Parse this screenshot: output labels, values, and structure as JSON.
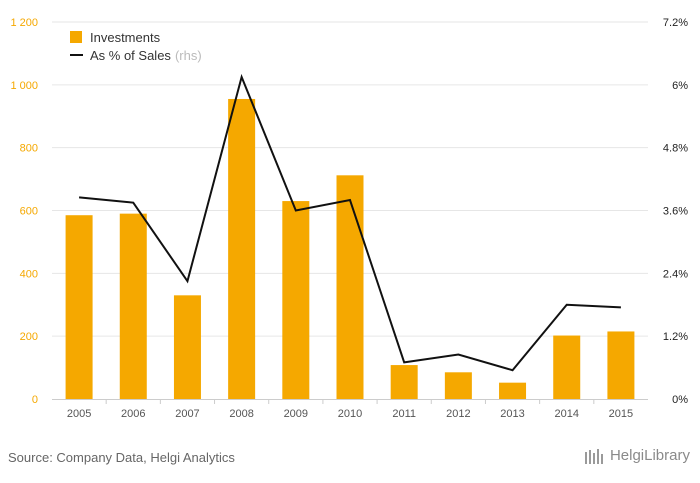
{
  "chart_data": {
    "type": "bar",
    "categories": [
      "2005",
      "2006",
      "2007",
      "2008",
      "2009",
      "2010",
      "2011",
      "2012",
      "2013",
      "2014",
      "2015"
    ],
    "series": [
      {
        "name": "Investments",
        "type": "bar",
        "axis": "left",
        "values": [
          585,
          590,
          330,
          955,
          630,
          712,
          108,
          85,
          52,
          202,
          215
        ]
      },
      {
        "name": "As % of Sales",
        "type": "line",
        "axis": "right",
        "values": [
          3.85,
          3.75,
          2.25,
          6.15,
          3.6,
          3.8,
          0.7,
          0.85,
          0.55,
          1.8,
          1.75
        ]
      }
    ],
    "legend": {
      "investments": "Investments",
      "pct_sales": "As % of Sales",
      "pct_sales_note": "(rhs)",
      "position": "top-left"
    },
    "left_axis": {
      "ylim": [
        0,
        1200
      ],
      "ticks": [
        0,
        200,
        400,
        600,
        800,
        1000,
        1200
      ],
      "tick_labels": [
        "0",
        "200",
        "400",
        "600",
        "800",
        "1 000",
        "1 200"
      ]
    },
    "right_axis": {
      "ylim": [
        0,
        7.2
      ],
      "ticks": [
        0,
        1.2,
        2.4,
        3.6,
        4.8,
        6,
        7.2
      ],
      "tick_labels": [
        "0%",
        "1.2%",
        "2.4%",
        "3.6%",
        "4.8%",
        "6%",
        "7.2%"
      ]
    },
    "grid": true
  },
  "colors": {
    "bar": "#f5a800",
    "line": "#111111",
    "left_tick": "#f5a800",
    "right_tick": "#222222",
    "grid": "#e6e6e6"
  },
  "footer": {
    "source": "Source: Company Data, Helgi Analytics",
    "brand": "HelgiLibrary"
  }
}
